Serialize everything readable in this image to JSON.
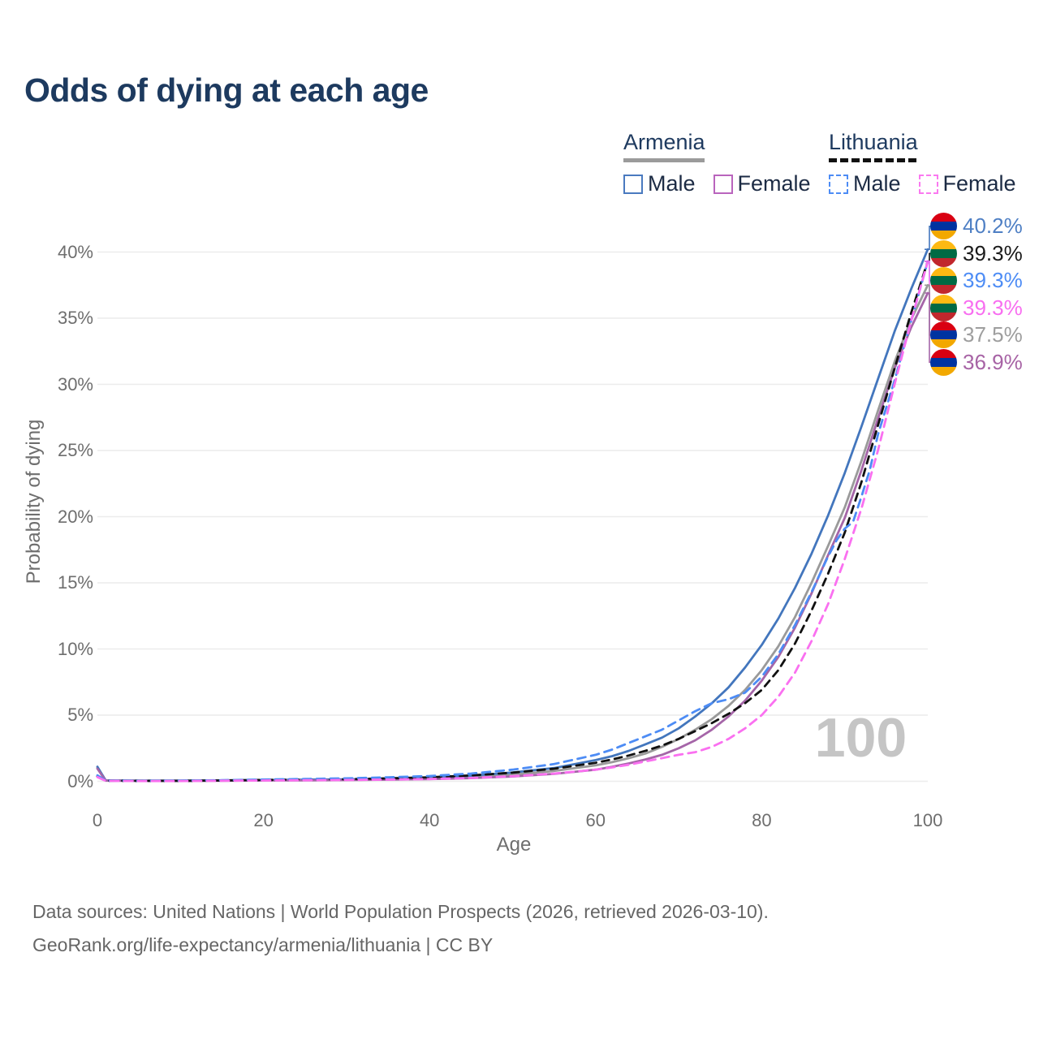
{
  "title": "Odds of dying at each age",
  "watermark": "100",
  "legend": {
    "groups": [
      {
        "country": "Armenia",
        "line_color": "#9b9b9b",
        "dash": false,
        "items": [
          {
            "label": "Male",
            "color": "#4577be"
          },
          {
            "label": "Female",
            "color": "#b06ab3"
          }
        ]
      },
      {
        "country": "Lithuania",
        "line_color": "#111111",
        "dash": true,
        "items": [
          {
            "label": "Male",
            "color": "#4d8cf5"
          },
          {
            "label": "Female",
            "color": "#fa79f0"
          }
        ]
      }
    ]
  },
  "footer": {
    "line1": "Data sources: United Nations | World Population Prospects (2026, retrieved 2026-03-10).",
    "line2": "GeoRank.org/life-expectancy/armenia/lithuania | CC BY"
  },
  "flags": {
    "armenia": [
      "#D90012",
      "#0033A0",
      "#F2A800"
    ],
    "lithuania": [
      "#FDB913",
      "#006A44",
      "#C1272D"
    ]
  },
  "chart_data": {
    "type": "line",
    "title": "Odds of dying at each age",
    "xlabel": "Age",
    "ylabel": "Probability of dying",
    "xlim": [
      0,
      100
    ],
    "ylim_pct": [
      0,
      42
    ],
    "grid": true,
    "legend_position": "top-right",
    "hovered_age": "100",
    "xticks": [
      {
        "v": 0,
        "label": "0"
      },
      {
        "v": 20,
        "label": "20"
      },
      {
        "v": 40,
        "label": "40"
      },
      {
        "v": 60,
        "label": "60"
      },
      {
        "v": 80,
        "label": "80"
      },
      {
        "v": 100,
        "label": "100"
      }
    ],
    "yticks": [
      {
        "v": 0,
        "label": "0%"
      },
      {
        "v": 5,
        "label": "5%"
      },
      {
        "v": 10,
        "label": "10%"
      },
      {
        "v": 15,
        "label": "15%"
      },
      {
        "v": 20,
        "label": "20%"
      },
      {
        "v": 25,
        "label": "25%"
      },
      {
        "v": 30,
        "label": "30%"
      },
      {
        "v": 35,
        "label": "35%"
      },
      {
        "v": 40,
        "label": "40%"
      }
    ],
    "series": [
      {
        "id": "armenia-both",
        "name": "Armenia — Both sexes",
        "country": "armenia",
        "sex": "both",
        "color": "#9a9a9a",
        "dash": false,
        "end_label": "37.5%",
        "label_color": "#9e9e9e",
        "end_row": 4,
        "points": [
          [
            0,
            1.0
          ],
          [
            1,
            0.06
          ],
          [
            5,
            0.04
          ],
          [
            10,
            0.04
          ],
          [
            15,
            0.06
          ],
          [
            20,
            0.08
          ],
          [
            25,
            0.1
          ],
          [
            30,
            0.12
          ],
          [
            35,
            0.16
          ],
          [
            40,
            0.22
          ],
          [
            45,
            0.33
          ],
          [
            50,
            0.5
          ],
          [
            55,
            0.78
          ],
          [
            60,
            1.2
          ],
          [
            62,
            1.45
          ],
          [
            64,
            1.75
          ],
          [
            66,
            2.1
          ],
          [
            68,
            2.6
          ],
          [
            70,
            3.2
          ],
          [
            72,
            3.9
          ],
          [
            74,
            4.7
          ],
          [
            76,
            5.7
          ],
          [
            78,
            6.9
          ],
          [
            80,
            8.4
          ],
          [
            82,
            10.2
          ],
          [
            84,
            12.4
          ],
          [
            86,
            15.0
          ],
          [
            88,
            17.8
          ],
          [
            90,
            20.7
          ],
          [
            92,
            24.2
          ],
          [
            94,
            28.0
          ],
          [
            96,
            31.7
          ],
          [
            98,
            34.9
          ],
          [
            100,
            37.5
          ]
        ]
      },
      {
        "id": "armenia-male",
        "name": "Armenia — Male",
        "country": "armenia",
        "sex": "male",
        "color": "#4376bd",
        "dash": false,
        "end_label": "40.2%",
        "label_color": "#4e7fc4",
        "end_row": 0,
        "points": [
          [
            0,
            1.1
          ],
          [
            1,
            0.07
          ],
          [
            5,
            0.05
          ],
          [
            10,
            0.05
          ],
          [
            15,
            0.07
          ],
          [
            20,
            0.1
          ],
          [
            25,
            0.12
          ],
          [
            30,
            0.15
          ],
          [
            35,
            0.2
          ],
          [
            40,
            0.29
          ],
          [
            45,
            0.43
          ],
          [
            50,
            0.66
          ],
          [
            55,
            1.0
          ],
          [
            60,
            1.6
          ],
          [
            62,
            1.9
          ],
          [
            64,
            2.3
          ],
          [
            66,
            2.8
          ],
          [
            68,
            3.3
          ],
          [
            70,
            4.0
          ],
          [
            72,
            4.9
          ],
          [
            74,
            5.9
          ],
          [
            76,
            7.1
          ],
          [
            78,
            8.6
          ],
          [
            80,
            10.3
          ],
          [
            82,
            12.3
          ],
          [
            84,
            14.6
          ],
          [
            86,
            17.2
          ],
          [
            88,
            20.1
          ],
          [
            90,
            23.3
          ],
          [
            92,
            26.8
          ],
          [
            94,
            30.4
          ],
          [
            96,
            34.0
          ],
          [
            98,
            37.2
          ],
          [
            100,
            40.2
          ]
        ]
      },
      {
        "id": "armenia-female",
        "name": "Armenia — Female",
        "country": "armenia",
        "sex": "female",
        "color": "#a565a8",
        "dash": false,
        "end_label": "36.9%",
        "label_color": "#a763a5",
        "end_row": 5,
        "points": [
          [
            0,
            0.95
          ],
          [
            1,
            0.05
          ],
          [
            5,
            0.03
          ],
          [
            10,
            0.03
          ],
          [
            15,
            0.04
          ],
          [
            20,
            0.06
          ],
          [
            25,
            0.07
          ],
          [
            30,
            0.09
          ],
          [
            35,
            0.12
          ],
          [
            40,
            0.16
          ],
          [
            45,
            0.24
          ],
          [
            50,
            0.36
          ],
          [
            55,
            0.56
          ],
          [
            60,
            0.88
          ],
          [
            62,
            1.1
          ],
          [
            64,
            1.35
          ],
          [
            66,
            1.65
          ],
          [
            68,
            2.0
          ],
          [
            70,
            2.5
          ],
          [
            72,
            3.1
          ],
          [
            74,
            3.9
          ],
          [
            76,
            4.9
          ],
          [
            78,
            6.1
          ],
          [
            80,
            7.6
          ],
          [
            82,
            9.4
          ],
          [
            84,
            11.6
          ],
          [
            86,
            14.2
          ],
          [
            88,
            17.1
          ],
          [
            90,
            19.9
          ],
          [
            92,
            23.5
          ],
          [
            94,
            27.4
          ],
          [
            96,
            31.2
          ],
          [
            98,
            34.3
          ],
          [
            100,
            36.9
          ]
        ]
      },
      {
        "id": "lithuania-both",
        "name": "Lithuania — Both sexes",
        "country": "lithuania",
        "sex": "both",
        "color": "#111111",
        "dash": true,
        "end_label": "39.3%",
        "label_color": "#1a1a1a",
        "end_row": 1,
        "points": [
          [
            0,
            0.38
          ],
          [
            1,
            0.04
          ],
          [
            5,
            0.03
          ],
          [
            10,
            0.03
          ],
          [
            15,
            0.06
          ],
          [
            20,
            0.1
          ],
          [
            25,
            0.13
          ],
          [
            30,
            0.16
          ],
          [
            35,
            0.22
          ],
          [
            40,
            0.3
          ],
          [
            45,
            0.44
          ],
          [
            50,
            0.65
          ],
          [
            55,
            0.95
          ],
          [
            60,
            1.4
          ],
          [
            62,
            1.65
          ],
          [
            64,
            1.95
          ],
          [
            66,
            2.3
          ],
          [
            68,
            2.7
          ],
          [
            70,
            3.2
          ],
          [
            72,
            3.8
          ],
          [
            74,
            4.4
          ],
          [
            76,
            5.1
          ],
          [
            78,
            5.9
          ],
          [
            80,
            6.9
          ],
          [
            82,
            8.4
          ],
          [
            84,
            10.4
          ],
          [
            86,
            12.9
          ],
          [
            88,
            15.7
          ],
          [
            90,
            18.8
          ],
          [
            92,
            22.6
          ],
          [
            94,
            26.9
          ],
          [
            96,
            31.2
          ],
          [
            98,
            35.4
          ],
          [
            100,
            39.3
          ]
        ]
      },
      {
        "id": "lithuania-male",
        "name": "Lithuania — Male",
        "country": "lithuania",
        "sex": "male",
        "color": "#4d8cf5",
        "dash": true,
        "end_label": "39.3%",
        "label_color": "#4d8cf5",
        "end_row": 2,
        "points": [
          [
            0,
            0.45
          ],
          [
            1,
            0.05
          ],
          [
            5,
            0.03
          ],
          [
            10,
            0.04
          ],
          [
            15,
            0.08
          ],
          [
            20,
            0.13
          ],
          [
            25,
            0.17
          ],
          [
            30,
            0.22
          ],
          [
            35,
            0.3
          ],
          [
            40,
            0.4
          ],
          [
            45,
            0.58
          ],
          [
            50,
            0.88
          ],
          [
            55,
            1.3
          ],
          [
            60,
            2.0
          ],
          [
            62,
            2.4
          ],
          [
            64,
            2.9
          ],
          [
            66,
            3.4
          ],
          [
            68,
            3.9
          ],
          [
            70,
            4.6
          ],
          [
            72,
            5.3
          ],
          [
            74,
            5.9
          ],
          [
            76,
            6.2
          ],
          [
            78,
            6.7
          ],
          [
            80,
            7.9
          ],
          [
            82,
            9.6
          ],
          [
            84,
            11.8
          ],
          [
            86,
            14.3
          ],
          [
            88,
            17.0
          ],
          [
            89,
            18.2
          ],
          [
            90,
            19.1
          ],
          [
            91,
            19.6
          ],
          [
            92,
            21.5
          ],
          [
            93,
            23.5
          ],
          [
            94,
            26.2
          ],
          [
            96,
            30.3
          ],
          [
            98,
            34.8
          ],
          [
            100,
            39.3
          ]
        ]
      },
      {
        "id": "lithuania-female",
        "name": "Lithuania — Female",
        "country": "lithuania",
        "sex": "female",
        "color": "#fa70f0",
        "dash": true,
        "end_label": "39.3%",
        "label_color": "#f86ef0",
        "end_row": 3,
        "points": [
          [
            0,
            0.32
          ],
          [
            1,
            0.03
          ],
          [
            5,
            0.02
          ],
          [
            10,
            0.02
          ],
          [
            15,
            0.04
          ],
          [
            20,
            0.06
          ],
          [
            25,
            0.08
          ],
          [
            30,
            0.1
          ],
          [
            35,
            0.13
          ],
          [
            40,
            0.17
          ],
          [
            45,
            0.25
          ],
          [
            50,
            0.38
          ],
          [
            55,
            0.58
          ],
          [
            60,
            0.88
          ],
          [
            62,
            1.05
          ],
          [
            64,
            1.25
          ],
          [
            66,
            1.5
          ],
          [
            68,
            1.75
          ],
          [
            70,
            2.0
          ],
          [
            72,
            2.2
          ],
          [
            74,
            2.6
          ],
          [
            76,
            3.2
          ],
          [
            78,
            4.0
          ],
          [
            80,
            5.0
          ],
          [
            82,
            6.4
          ],
          [
            84,
            8.2
          ],
          [
            86,
            10.6
          ],
          [
            88,
            13.4
          ],
          [
            90,
            16.8
          ],
          [
            92,
            20.6
          ],
          [
            94,
            25.0
          ],
          [
            96,
            30.0
          ],
          [
            98,
            34.8
          ],
          [
            100,
            39.3
          ]
        ]
      }
    ]
  }
}
